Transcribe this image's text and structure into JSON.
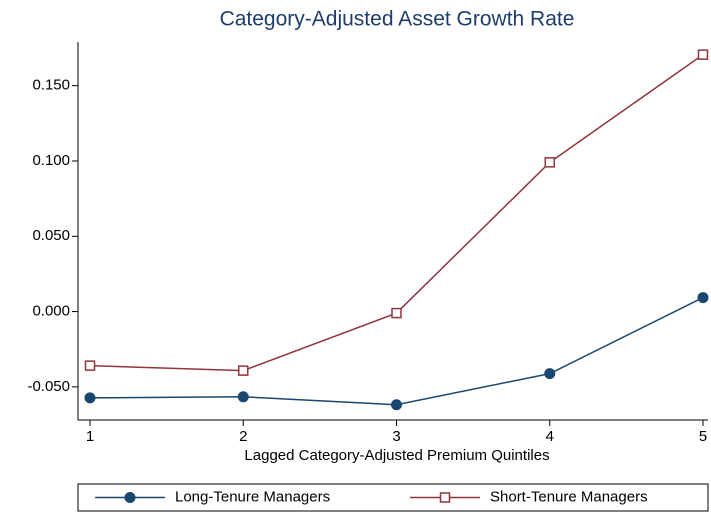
{
  "chart_data": {
    "type": "line",
    "title": "Category-Adjusted Asset Growth Rate",
    "x_label": "Lagged Category-Adjusted Premium Quintiles",
    "x": [
      1,
      2,
      3,
      4,
      5
    ],
    "xlim": [
      1,
      5
    ],
    "xticks": [
      1,
      2,
      3,
      4,
      5
    ],
    "ylim": [
      -0.072,
      0.179
    ],
    "yticks": [
      {
        "value": -0.05,
        "label": "-0.050"
      },
      {
        "value": 0,
        "label": "0.000"
      },
      {
        "value": 0.05,
        "label": "0.050"
      },
      {
        "value": 0.1,
        "label": "0.100"
      },
      {
        "value": 0.15,
        "label": "0.150"
      }
    ],
    "grid": false,
    "legend": "bottom",
    "series": [
      {
        "name": "Long-Tenure Managers",
        "color": "#1a476f",
        "marker": "circle",
        "values": [
          -0.0573,
          -0.0566,
          -0.0619,
          -0.0412,
          0.0093
        ]
      },
      {
        "name": "Short-Tenure Managers",
        "color": "#90353b",
        "marker": "square",
        "values": [
          -0.0359,
          -0.0392,
          -0.001,
          0.0991,
          0.1706
        ]
      }
    ]
  }
}
